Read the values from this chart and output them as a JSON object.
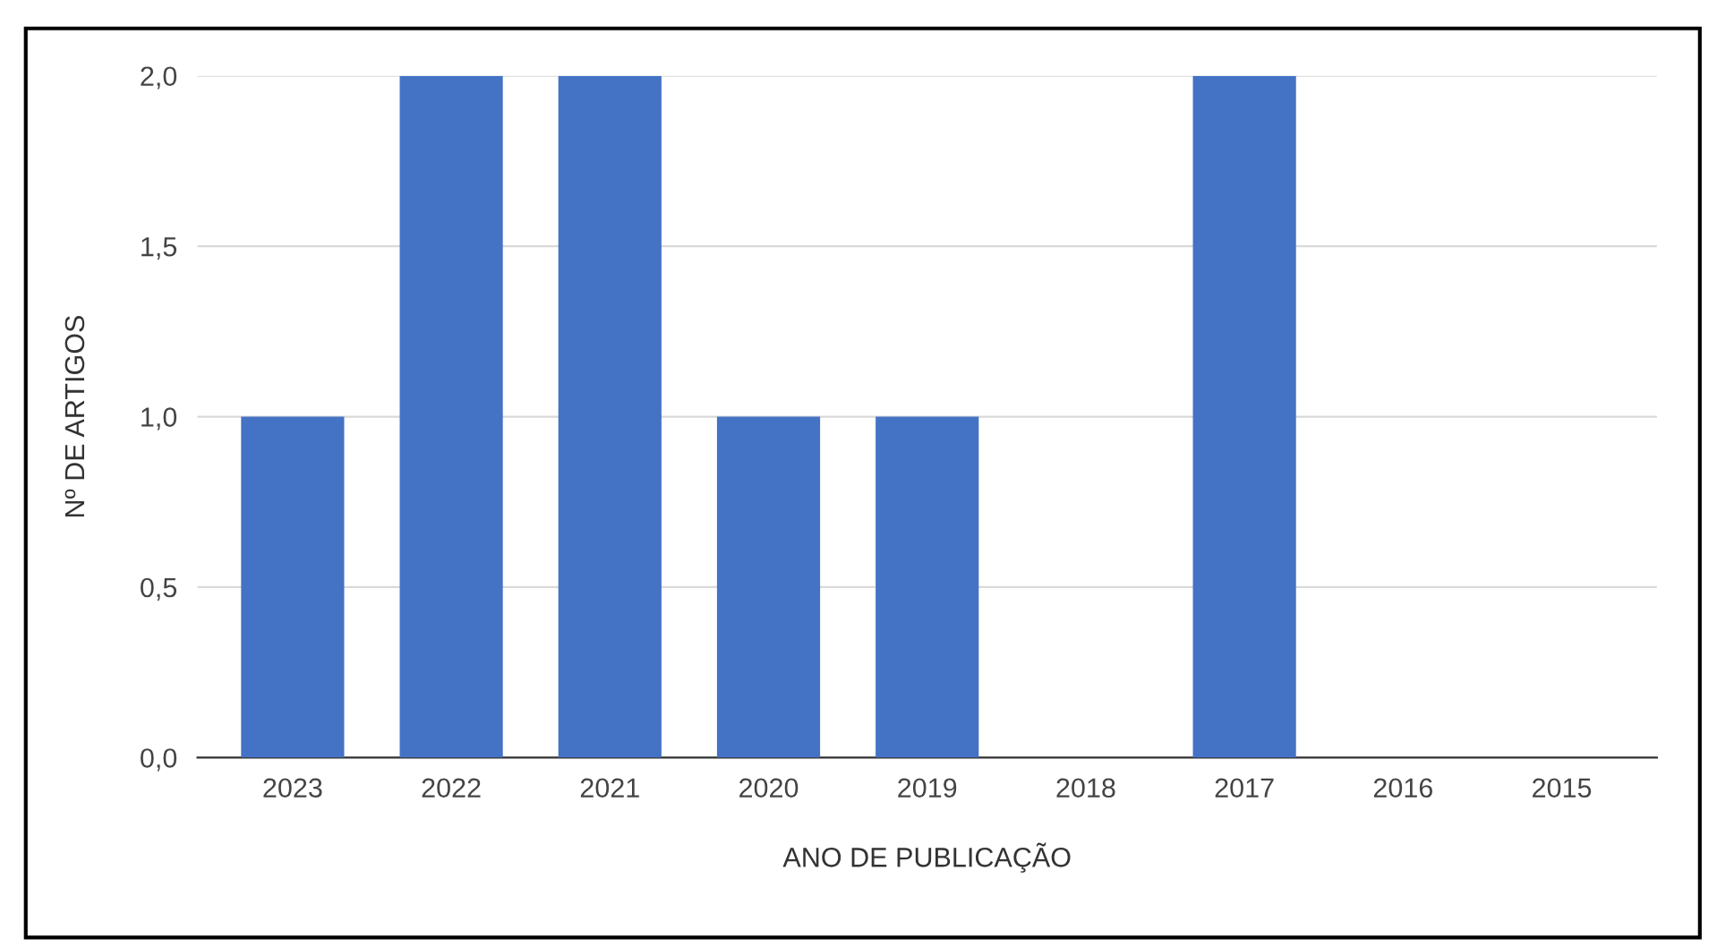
{
  "chart_data": {
    "type": "bar",
    "categories": [
      "2023",
      "2022",
      "2021",
      "2020",
      "2019",
      "2018",
      "2017",
      "2016",
      "2015"
    ],
    "values": [
      1,
      2,
      2,
      1,
      1,
      0,
      2,
      0,
      0
    ],
    "color": "#4472c4",
    "xlabel": "ANO DE PUBLICAÇÃO",
    "ylabel": "Nº DE ARTIGOS",
    "ylim": [
      0,
      2
    ],
    "yticks": [
      {
        "value": 0,
        "label": "0,0"
      },
      {
        "value": 0.5,
        "label": "0,5"
      },
      {
        "value": 1,
        "label": "1,0"
      },
      {
        "value": 1.5,
        "label": "1,5"
      },
      {
        "value": 2,
        "label": "2,0"
      }
    ],
    "grid": "y"
  }
}
